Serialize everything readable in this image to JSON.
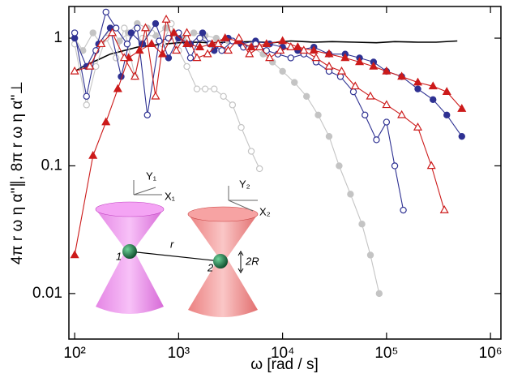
{
  "chart_data": {
    "type": "line",
    "x_label": "ω [rad / s]",
    "y_label": "4π r ω η α''∥, 8π r ω η α''⊥",
    "log_x": true,
    "log_y": true,
    "xlim": [
      88,
      1260000
    ],
    "ylim": [
      0.0044,
      1.77
    ],
    "xticks": [
      {
        "value": 100,
        "label": "10²"
      },
      {
        "value": 1000,
        "label": "10³"
      },
      {
        "value": 10000,
        "label": "10⁴"
      },
      {
        "value": 100000,
        "label": "10⁵"
      },
      {
        "value": 1000000,
        "label": "10⁶"
      }
    ],
    "yticks": [
      0.01,
      0.1,
      1
    ],
    "series": [
      {
        "color": "#000000",
        "marker": "none",
        "filled": true,
        "x": [
          100,
          130,
          170,
          220,
          300,
          400,
          550,
          750,
          1000,
          1500,
          2000,
          3000,
          5000,
          8000,
          12000,
          20000,
          30000,
          50000,
          80000,
          120000,
          200000,
          300000,
          480000
        ],
        "values": [
          0.55,
          0.62,
          0.68,
          0.75,
          0.8,
          0.85,
          0.88,
          0.9,
          0.92,
          0.93,
          0.92,
          0.93,
          0.94,
          0.92,
          0.95,
          0.93,
          0.94,
          0.93,
          0.92,
          0.94,
          0.93,
          0.93,
          0.95
        ]
      },
      {
        "color": "#c4c4c4",
        "marker": "circle",
        "filled": true,
        "x": [
          100,
          120,
          150,
          180,
          220,
          270,
          330,
          400,
          500,
          600,
          750,
          900,
          1100,
          1400,
          1800,
          2300,
          3000,
          4000,
          5000,
          6500,
          8000,
          10000,
          13000,
          17000,
          22000,
          28000,
          35000,
          45000,
          58000,
          70000,
          85000
        ],
        "values": [
          1.0,
          0.8,
          1.1,
          0.9,
          1.2,
          0.95,
          1.1,
          1.3,
          1.2,
          1.05,
          1.2,
          1.1,
          1.0,
          1.1,
          1.05,
          1.0,
          0.95,
          0.9,
          0.85,
          0.75,
          0.65,
          0.55,
          0.45,
          0.35,
          0.25,
          0.17,
          0.1,
          0.06,
          0.035,
          0.02,
          0.01
        ]
      },
      {
        "color": "#c4c4c4",
        "marker": "circle",
        "filled": false,
        "x": [
          100,
          130,
          160,
          200,
          250,
          300,
          380,
          450,
          550,
          700,
          850,
          1000,
          1200,
          1500,
          1800,
          2200,
          2700,
          3300,
          4000,
          5000,
          6000
        ],
        "values": [
          0.9,
          0.3,
          0.6,
          1.0,
          0.7,
          1.2,
          0.5,
          1.0,
          1.1,
          0.9,
          1.3,
          0.8,
          0.6,
          0.4,
          0.4,
          0.4,
          0.35,
          0.3,
          0.2,
          0.13,
          0.095
        ]
      },
      {
        "color": "#2e3192",
        "marker": "circle",
        "filled": true,
        "x": [
          100,
          130,
          170,
          220,
          280,
          350,
          450,
          600,
          800,
          1000,
          1300,
          1700,
          2200,
          3000,
          4000,
          5500,
          7500,
          10000,
          14000,
          20000,
          28000,
          40000,
          55000,
          75000,
          100000,
          140000,
          200000,
          280000,
          380000,
          530000
        ],
        "values": [
          1.0,
          0.6,
          0.9,
          1.2,
          0.5,
          1.1,
          0.9,
          1.3,
          0.7,
          1.0,
          0.9,
          1.1,
          0.8,
          1.0,
          0.9,
          0.95,
          0.9,
          0.85,
          0.8,
          0.85,
          0.75,
          0.75,
          0.7,
          0.65,
          0.55,
          0.5,
          0.4,
          0.33,
          0.25,
          0.17
        ]
      },
      {
        "color": "#2e3192",
        "marker": "circle",
        "filled": false,
        "x": [
          100,
          130,
          160,
          200,
          250,
          320,
          400,
          500,
          650,
          800,
          1000,
          1300,
          1600,
          2000,
          2600,
          3300,
          4200,
          5500,
          7000,
          9000,
          12000,
          16000,
          21000,
          28000,
          36000,
          48000,
          62000,
          80000,
          100000,
          120000,
          145000
        ],
        "values": [
          1.1,
          0.35,
          0.8,
          1.6,
          1.2,
          0.9,
          1.2,
          0.25,
          0.95,
          1.0,
          1.1,
          0.7,
          1.0,
          0.9,
          0.8,
          0.95,
          0.85,
          0.9,
          0.8,
          0.75,
          0.7,
          0.75,
          0.65,
          0.55,
          0.5,
          0.38,
          0.25,
          0.16,
          0.22,
          0.1,
          0.045
        ]
      },
      {
        "color": "#cc1a1a",
        "marker": "triangle",
        "filled": true,
        "x": [
          100,
          150,
          200,
          260,
          330,
          420,
          550,
          700,
          900,
          1200,
          1600,
          2100,
          2800,
          3700,
          5000,
          7000,
          10000,
          14000,
          20000,
          28000,
          40000,
          55000,
          75000,
          100000,
          140000,
          200000,
          280000,
          380000,
          530000
        ],
        "values": [
          0.02,
          0.12,
          0.22,
          0.4,
          0.7,
          0.8,
          0.9,
          0.75,
          1.1,
          0.9,
          0.85,
          0.9,
          1.0,
          0.95,
          0.85,
          0.9,
          0.95,
          0.85,
          0.8,
          0.75,
          0.7,
          0.65,
          0.6,
          0.55,
          0.5,
          0.45,
          0.42,
          0.38,
          0.28
        ]
      },
      {
        "color": "#cc1a1a",
        "marker": "triangle",
        "filled": false,
        "x": [
          100,
          140,
          180,
          230,
          300,
          380,
          480,
          600,
          760,
          950,
          1200,
          1500,
          1900,
          2400,
          3000,
          3800,
          4800,
          6000,
          7500,
          9500,
          12000,
          16000,
          21000,
          28000,
          37000,
          50000,
          70000,
          100000,
          140000,
          200000,
          270000,
          360000
        ],
        "values": [
          0.55,
          0.6,
          0.9,
          1.1,
          0.7,
          0.5,
          1.2,
          0.35,
          1.4,
          0.8,
          1.1,
          0.7,
          0.75,
          0.9,
          0.8,
          1.0,
          0.75,
          0.85,
          0.7,
          0.8,
          0.85,
          0.8,
          0.7,
          0.6,
          0.55,
          0.42,
          0.35,
          0.3,
          0.25,
          0.2,
          0.1,
          0.045
        ]
      }
    ]
  },
  "inset": {
    "labels": [
      "Y₁",
      "X₁",
      "Y₂",
      "X₂",
      "r",
      "1",
      "2",
      "2R"
    ]
  }
}
